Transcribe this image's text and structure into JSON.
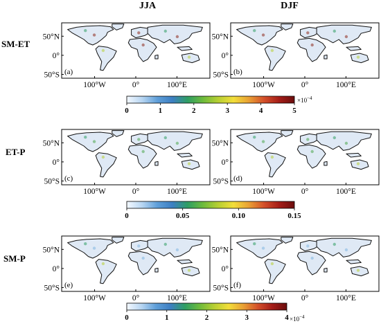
{
  "figure": {
    "column_titles": [
      "JJA",
      "DJF"
    ],
    "rows": [
      {
        "label": "SM-ET",
        "panels": [
          "(a)",
          "(b)"
        ],
        "colorbar": {
          "ticks": [
            "0",
            "1",
            "2",
            "3",
            "4",
            "5"
          ],
          "exponent_base": "×10",
          "exponent_power": "−4",
          "range": [
            0,
            5
          ]
        },
        "accent": "#8e2a1c"
      },
      {
        "label": "ET-P",
        "panels": [
          "(c)",
          "(d)"
        ],
        "colorbar": {
          "ticks": [
            "0",
            "0.05",
            "0.10",
            "0.15"
          ],
          "exponent_base": "",
          "exponent_power": "",
          "range": [
            0,
            0.15
          ]
        },
        "accent": "#4aa64a"
      },
      {
        "label": "SM-P",
        "panels": [
          "(e)",
          "(f)"
        ],
        "colorbar": {
          "ticks": [
            "0",
            "1",
            "2",
            "3",
            "4"
          ],
          "exponent_base": "×10",
          "exponent_power": "−4",
          "range": [
            0,
            4
          ]
        },
        "accent": "#7fb6e0"
      }
    ],
    "lat_ticks": [
      "50°N",
      "0°",
      "50°S"
    ],
    "lon_ticks": [
      "100°W",
      "0°",
      "100°E"
    ],
    "colormap": [
      "#f4f9ff",
      "#b8d6f2",
      "#5f9fd9",
      "#3d7fc2",
      "#2f9e63",
      "#6dbb3c",
      "#b7cf33",
      "#f2de3a",
      "#e9a134",
      "#d4502a",
      "#a41d18",
      "#6b0d0d"
    ]
  }
}
